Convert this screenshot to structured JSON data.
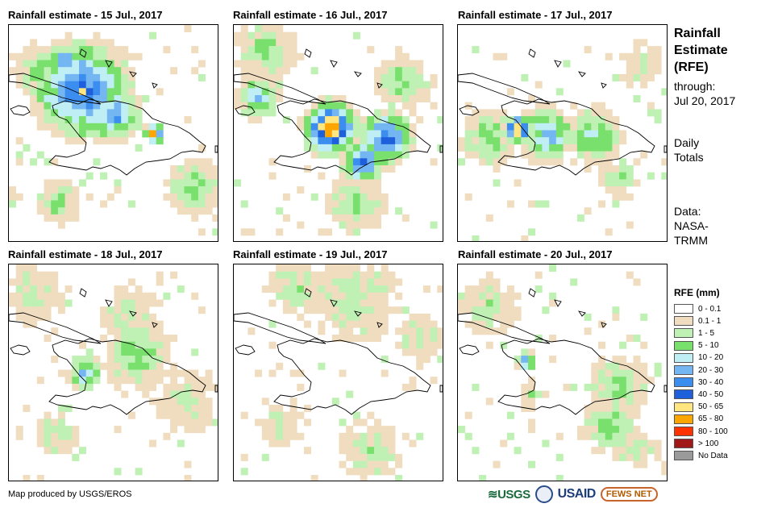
{
  "panels": [
    {
      "title": "Rainfall estimate - 15 Jul., 2017"
    },
    {
      "title": "Rainfall estimate - 16 Jul., 2017"
    },
    {
      "title": "Rainfall estimate - 17 Jul., 2017"
    },
    {
      "title": "Rainfall estimate - 18 Jul., 2017"
    },
    {
      "title": "Rainfall estimate - 19 Jul., 2017"
    },
    {
      "title": "Rainfall estimate - 20 Jul., 2017"
    }
  ],
  "sidebar": {
    "title_line1": "Rainfall",
    "title_line2": "Estimate",
    "title_line3": "(RFE)",
    "through_label": "through:",
    "through_date": "Jul 20, 2017",
    "totals_line1": "Daily",
    "totals_line2": "Totals",
    "data_label": "Data:",
    "data_source_line1": "NASA-",
    "data_source_line2": "TRMM"
  },
  "legend": {
    "title": "RFE (mm)",
    "items": [
      {
        "label": "0 - 0.1",
        "color": "#ffffff"
      },
      {
        "label": "0.1 - 1",
        "color": "#f0dcbf"
      },
      {
        "label": "1 - 5",
        "color": "#bff0b4"
      },
      {
        "label": "5 - 10",
        "color": "#79e06d"
      },
      {
        "label": "10 - 20",
        "color": "#bfeef5"
      },
      {
        "label": "20 - 30",
        "color": "#74b6f2"
      },
      {
        "label": "30 - 40",
        "color": "#3b8ef0"
      },
      {
        "label": "40 - 50",
        "color": "#1e5fdc"
      },
      {
        "label": "50 - 65",
        "color": "#ffe680"
      },
      {
        "label": "65 - 80",
        "color": "#ffa500"
      },
      {
        "label": "80 - 100",
        "color": "#ff3300"
      },
      {
        "label": "> 100",
        "color": "#a01818"
      },
      {
        "label": "No Data",
        "color": "#9a9a9a"
      }
    ]
  },
  "footer": {
    "credit": "Map produced by USGS/EROS",
    "logo_usgs": "≋USGS",
    "logo_usaid": "USAID",
    "logo_fews": "FEWS NET"
  }
}
